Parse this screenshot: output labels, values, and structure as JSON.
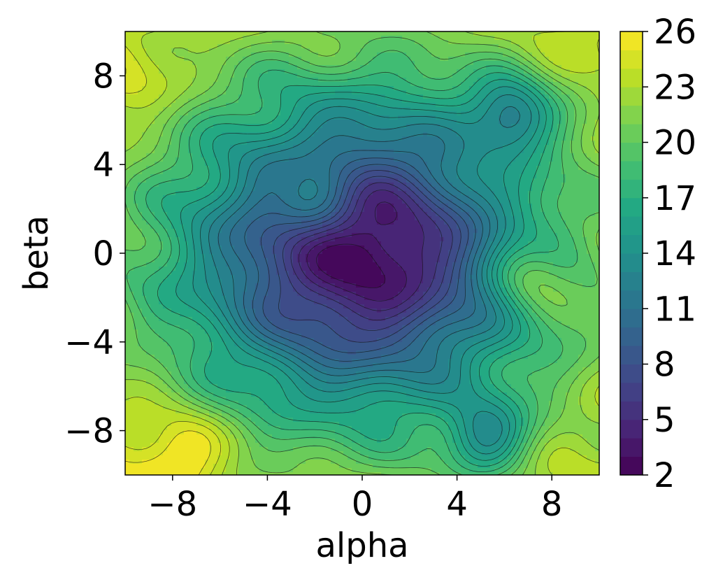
{
  "chart_data": {
    "type": "contour",
    "title": "",
    "xlabel": "alpha",
    "ylabel": "beta",
    "xlim": [
      -10,
      10
    ],
    "ylim": [
      -10,
      10
    ],
    "x_ticks": [
      -8,
      -4,
      0,
      4,
      8
    ],
    "y_ticks": [
      -8,
      -4,
      0,
      4,
      8
    ],
    "x_tick_labels": [
      "−8",
      "−4",
      "0",
      "4",
      "8"
    ],
    "y_tick_labels": [
      "−8",
      "−4",
      "0",
      "4",
      "8"
    ],
    "colorbar": {
      "colormap": "viridis",
      "range": [
        2,
        26
      ],
      "levels": [
        2,
        3,
        4,
        5,
        6,
        7,
        8,
        9,
        10,
        11,
        12,
        13,
        14,
        15,
        16,
        17,
        18,
        19,
        20,
        21,
        22,
        23,
        24,
        25,
        26
      ],
      "ticks": [
        2,
        5,
        8,
        11,
        14,
        17,
        20,
        23,
        26
      ],
      "tick_labels": [
        "2",
        "5",
        "8",
        "11",
        "14",
        "17",
        "20",
        "23",
        "26"
      ]
    },
    "grid": false,
    "legend": "none",
    "surface": {
      "description_of_values": "loss-landscape style surface: minimum ~2 near (0,0), rising toward edges (~22-26 in corners)",
      "minimum": {
        "x": 0,
        "y": 0,
        "value": 2
      },
      "local_bumps": [
        {
          "x": -9.5,
          "y": 7.5,
          "value": 24
        },
        {
          "x": -7.5,
          "y": -9,
          "value": 26
        },
        {
          "x": -9.5,
          "y": -9.5,
          "value": 24
        },
        {
          "x": 10,
          "y": -9.5,
          "value": 23
        },
        {
          "x": 0,
          "y": 9.5,
          "value": 20
        },
        {
          "x": 9.8,
          "y": 4.5,
          "value": 21
        },
        {
          "x": -9.5,
          "y": -2,
          "value": 19
        },
        {
          "x": 7,
          "y": -1,
          "value": 20
        },
        {
          "x": 6.3,
          "y": 6.2,
          "value": 11
        },
        {
          "x": 5.3,
          "y": -8.3,
          "value": 13
        },
        {
          "x": 5.5,
          "y": 3.8,
          "value": 16
        },
        {
          "x": -2,
          "y": 2.5,
          "value": 11
        }
      ]
    }
  }
}
